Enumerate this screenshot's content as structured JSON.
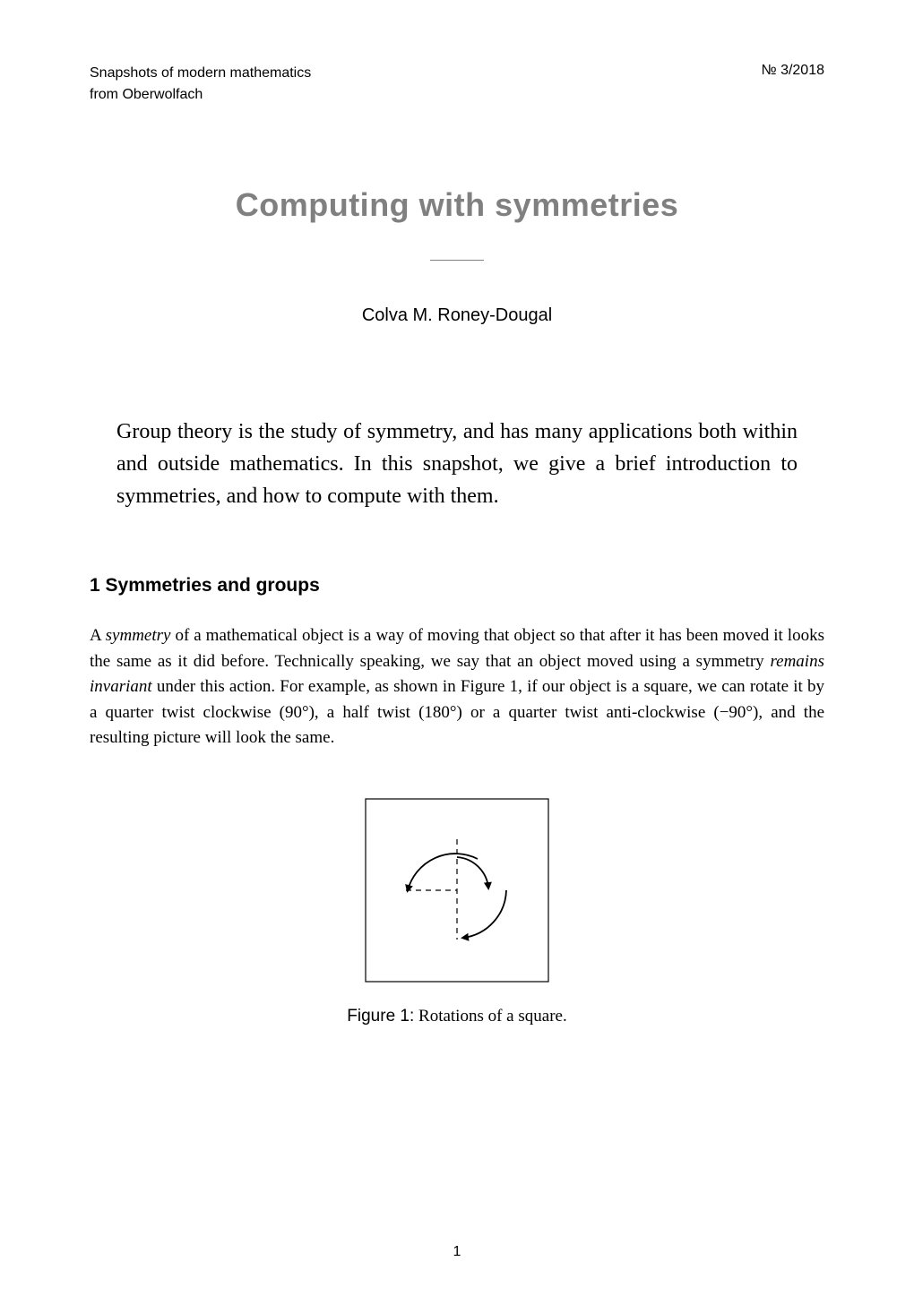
{
  "header": {
    "series_line1": "Snapshots of modern mathematics",
    "series_line2": "from Oberwolfach",
    "issue": "№ 3/2018"
  },
  "title": "Computing with symmetries",
  "author": "Colva M. Roney-Dougal",
  "abstract": "Group theory is the study of symmetry, and has many applications both within and outside mathematics. In this snapshot, we give a brief introduction to symmetries, and how to compute with them.",
  "section": {
    "number": "1",
    "heading": "Symmetries and groups"
  },
  "body_html": "A <span class=\"italic\">symmetry</span> of a mathematical object is a way of moving that object so that after it has been moved it looks the same as it did before. Technically speaking, we say that an object moved using a symmetry <span class=\"italic\">remains invariant</span> under this action. For example, as shown in Figure 1, if our object is a square, we can rotate it by a quarter twist clockwise (90°), a half twist (180°) or a quarter twist anti-clockwise (−90°), and the resulting picture will look the same.",
  "figure": {
    "label": "Figure 1:",
    "caption": "Rotations of a square.",
    "square_size": 210,
    "stroke_color": "#000000",
    "stroke_width": 1.2,
    "dash_pattern": "6,5"
  },
  "page_number": "1",
  "colors": {
    "background": "#ffffff",
    "text": "#000000",
    "title_gray": "#808080"
  },
  "typography": {
    "title_fontsize": 36,
    "author_fontsize": 20,
    "abstract_fontsize": 24,
    "body_fontsize": 19,
    "header_fontsize": 16,
    "section_fontsize": 21
  }
}
